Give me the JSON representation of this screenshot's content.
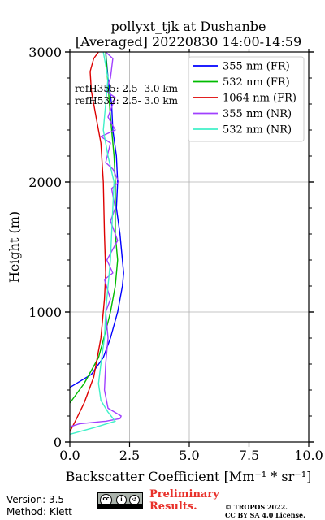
{
  "chart_data": {
    "type": "line",
    "title_line1": "pollyxt_tjk at Dushanbe",
    "title_line2": "[Averaged] 20220830 14:00-14:59",
    "xlabel": "Backscatter Coefficient [Mm⁻¹ * sr⁻¹]",
    "ylabel": "Height (m)",
    "xlim": [
      0,
      10
    ],
    "ylim": [
      0,
      3000
    ],
    "xticks": [
      0,
      2.5,
      5,
      7.5,
      10
    ],
    "xtick_labels": [
      "0.0",
      "2.5",
      "5.0",
      "7.5",
      "10.0"
    ],
    "yticks": [
      0,
      1000,
      2000,
      3000
    ],
    "ytick_labels": [
      "0",
      "1000",
      "2000",
      "3000"
    ],
    "grid": true,
    "legend_position": "top-right",
    "annotations": [
      "refH355:  2.5- 3.0 km",
      "refH532:  2.5- 3.0 km"
    ],
    "series": [
      {
        "name": "355 nm (FR)",
        "color": "#0000ff",
        "x": [
          0,
          0.9,
          1.4,
          1.7,
          2.0,
          2.2,
          2.25,
          2.1,
          1.95,
          2.0,
          1.95,
          1.8,
          1.75,
          1.6,
          1.5
        ],
        "y": [
          420,
          520,
          650,
          800,
          1000,
          1200,
          1300,
          1600,
          1800,
          2000,
          2200,
          2400,
          2600,
          2800,
          3000
        ]
      },
      {
        "name": "532 nm (FR)",
        "color": "#00bb00",
        "x": [
          0,
          0.6,
          1.2,
          1.5,
          1.7,
          1.9,
          2.0,
          1.9,
          1.9,
          1.85,
          1.7,
          1.6,
          1.5
        ],
        "y": [
          300,
          450,
          650,
          850,
          1000,
          1200,
          1400,
          1600,
          2000,
          2200,
          2500,
          2750,
          3000
        ]
      },
      {
        "name": "1064 nm (FR)",
        "color": "#dd0000",
        "x": [
          0,
          0.2,
          0.6,
          1.0,
          1.3,
          1.45,
          1.5,
          1.45,
          1.4,
          1.3,
          1.1,
          0.9,
          0.85,
          1.0,
          1.2
        ],
        "y": [
          80,
          150,
          300,
          500,
          800,
          1100,
          1300,
          1600,
          2000,
          2300,
          2500,
          2700,
          2850,
          2950,
          3000
        ]
      },
      {
        "name": "355 nm (NR)",
        "color": "#a040ff",
        "x": [
          0.05,
          0.4,
          1.5,
          2.1,
          2.15,
          1.6,
          1.45,
          1.5,
          1.6,
          1.5,
          1.7,
          1.45,
          1.8,
          1.55,
          2.0,
          1.7,
          1.9,
          1.75,
          2.05,
          1.8,
          1.5,
          1.7,
          1.3,
          1.9,
          1.6,
          1.9,
          1.5,
          1.7,
          1.8,
          1.5
        ],
        "y": [
          120,
          140,
          160,
          180,
          200,
          260,
          400,
          600,
          800,
          1000,
          1100,
          1250,
          1300,
          1400,
          1550,
          1700,
          1800,
          1950,
          2000,
          2100,
          2150,
          2300,
          2350,
          2400,
          2500,
          2650,
          2700,
          2800,
          2950,
          3000
        ]
      },
      {
        "name": "532 nm (NR)",
        "color": "#40f0c8",
        "x": [
          0,
          1.0,
          1.9,
          1.6,
          1.3,
          1.2,
          1.3,
          1.45,
          1.5,
          1.6,
          1.7,
          1.75,
          1.8,
          1.85,
          1.6,
          1.4,
          1.5,
          1.6,
          1.4
        ],
        "y": [
          60,
          110,
          160,
          230,
          320,
          450,
          600,
          800,
          1000,
          1200,
          1400,
          1600,
          1800,
          2000,
          2200,
          2400,
          2600,
          2800,
          3000
        ]
      }
    ]
  },
  "footer": {
    "version": "Version: 3.5",
    "method": "Method: Klett",
    "preliminary_line1": "Preliminary",
    "preliminary_line2": "Results.",
    "copyright_line1": "© TROPOS 2022.",
    "copyright_line2": "CC BY SA 4.0 License.",
    "license_badge": "cc-by-sa-icon"
  }
}
